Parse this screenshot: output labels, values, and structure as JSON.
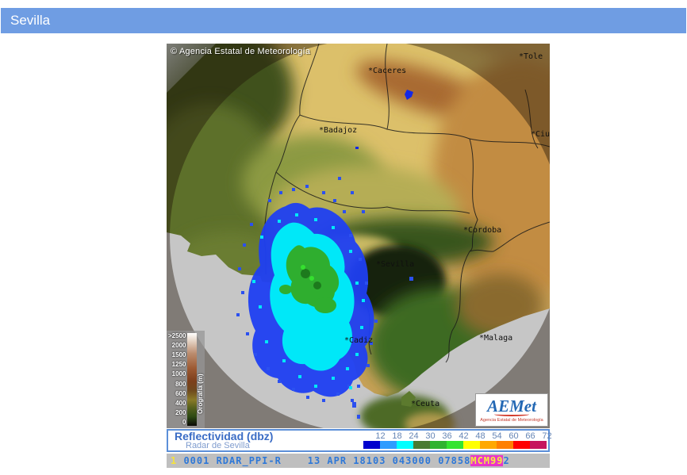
{
  "header": {
    "title": "Sevilla",
    "accent_color": "#6f9de3"
  },
  "map": {
    "copyright": "© Agencia Estatal de Meteorología",
    "cities": {
      "toledo": "*Tole",
      "caceres": "*Caceres",
      "ciudad_real": "*Ciu",
      "badajoz": "*Badajoz",
      "cordoba": "*Cordoba",
      "sevilla": "*Sevilla",
      "malaga": "*Malaga",
      "cadiz": "*Cadiz",
      "ceuta": "*Ceuta"
    },
    "elevation_legend": {
      "title": "Orografía (m)",
      "ticks": [
        ">2500",
        "2000",
        "1500",
        "1250",
        "1000",
        "800",
        "600",
        "400",
        "200",
        "0"
      ]
    },
    "logo": {
      "text": "AEMet",
      "subtext": "Agencia Estatal de Meteorología"
    }
  },
  "reflectivity_legend": {
    "title": "Reflectividad (dbz)",
    "subtitle": "Radar de Sevilla",
    "scale": [
      {
        "value": "12",
        "color": "#0000cd"
      },
      {
        "value": "18",
        "color": "#2e9cff"
      },
      {
        "value": "24",
        "color": "#00ffff"
      },
      {
        "value": "30",
        "color": "#4a7a32"
      },
      {
        "value": "36",
        "color": "#2fb32f"
      },
      {
        "value": "42",
        "color": "#33e42f"
      },
      {
        "value": "48",
        "color": "#ffff00"
      },
      {
        "value": "54",
        "color": "#ffa800"
      },
      {
        "value": "60",
        "color": "#ff7f00"
      },
      {
        "value": "66",
        "color": "#ff0000"
      },
      {
        "value": "72",
        "color": "#c6145f"
      }
    ]
  },
  "status_bar": {
    "prefix": "1",
    "main": " 0001 RDAR_PPI-R    13 APR 18103 043000 07858",
    "highlight": "MCM99",
    "tail": "2"
  }
}
